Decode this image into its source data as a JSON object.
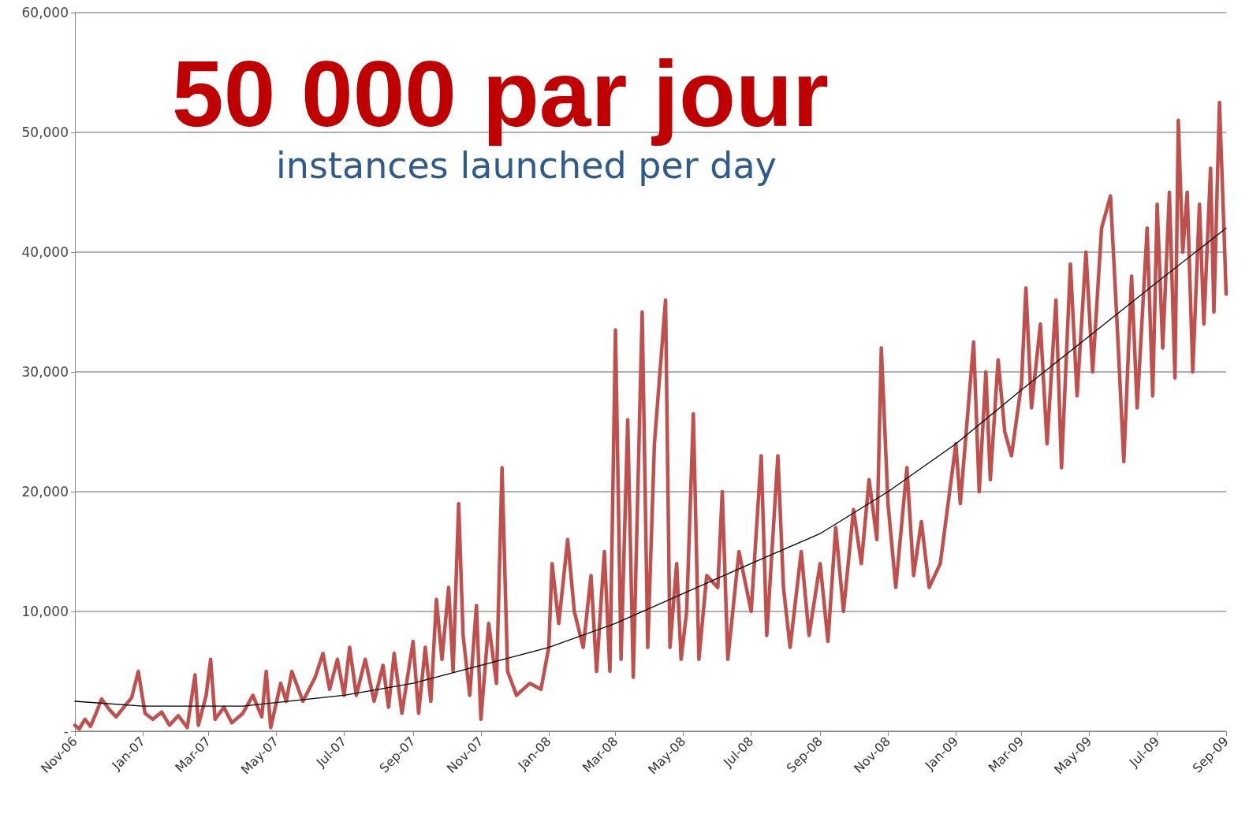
{
  "chart_data": {
    "type": "line",
    "title": "50 000 par jour",
    "subtitle": "instances launched per day",
    "xlim": [
      "2006-11-01",
      "2009-09-01"
    ],
    "xticks": [
      {
        "value": "2006-11-01",
        "label": "Nov-06"
      },
      {
        "value": "2007-01-01",
        "label": "Jan-07"
      },
      {
        "value": "2007-03-01",
        "label": "Mar-07"
      },
      {
        "value": "2007-05-01",
        "label": "May-07"
      },
      {
        "value": "2007-07-01",
        "label": "Jul-07"
      },
      {
        "value": "2007-09-01",
        "label": "Sep-07"
      },
      {
        "value": "2007-11-01",
        "label": "Nov-07"
      },
      {
        "value": "2008-01-01",
        "label": "Jan-08"
      },
      {
        "value": "2008-03-01",
        "label": "Mar-08"
      },
      {
        "value": "2008-05-01",
        "label": "May-08"
      },
      {
        "value": "2008-07-01",
        "label": "Jul-08"
      },
      {
        "value": "2008-09-01",
        "label": "Sep-08"
      },
      {
        "value": "2008-11-01",
        "label": "Nov-08"
      },
      {
        "value": "2009-01-01",
        "label": "Jan-09"
      },
      {
        "value": "2009-03-01",
        "label": "Mar-09"
      },
      {
        "value": "2009-05-01",
        "label": "May-09"
      },
      {
        "value": "2009-07-01",
        "label": "Jul-09"
      },
      {
        "value": "2009-09-01",
        "label": "Sep-09"
      }
    ],
    "ylim": [
      0,
      60000
    ],
    "yticks": [
      {
        "value": 0,
        "label": "-"
      },
      {
        "value": 10000,
        "label": "10,000"
      },
      {
        "value": 20000,
        "label": "20,000"
      },
      {
        "value": 30000,
        "label": "30,000"
      },
      {
        "value": 40000,
        "label": "40,000"
      },
      {
        "value": 50000,
        "label": "50,000"
      },
      {
        "value": 60000,
        "label": "60,000"
      }
    ],
    "grid": "y",
    "marker": "none",
    "line_style": "solid",
    "series": [
      {
        "color": "#c0504d",
        "x": [
          "2006-11-01",
          "2006-11-05",
          "2006-11-10",
          "2006-11-15",
          "2006-11-20",
          "2006-11-25",
          "2006-12-02",
          "2006-12-08",
          "2006-12-15",
          "2006-12-22",
          "2006-12-28",
          "2007-01-03",
          "2007-01-10",
          "2007-01-18",
          "2007-01-25",
          "2007-02-02",
          "2007-02-10",
          "2007-02-17",
          "2007-02-20",
          "2007-02-27",
          "2007-03-03",
          "2007-03-07",
          "2007-03-15",
          "2007-03-22",
          "2007-04-01",
          "2007-04-10",
          "2007-04-18",
          "2007-04-22",
          "2007-04-26",
          "2007-05-05",
          "2007-05-10",
          "2007-05-15",
          "2007-05-25",
          "2007-06-05",
          "2007-06-12",
          "2007-06-18",
          "2007-06-25",
          "2007-07-01",
          "2007-07-06",
          "2007-07-12",
          "2007-07-20",
          "2007-07-28",
          "2007-08-05",
          "2007-08-10",
          "2007-08-15",
          "2007-08-22",
          "2007-09-01",
          "2007-09-06",
          "2007-09-12",
          "2007-09-17",
          "2007-09-22",
          "2007-09-27",
          "2007-10-03",
          "2007-10-07",
          "2007-10-12",
          "2007-10-16",
          "2007-10-22",
          "2007-10-28",
          "2007-11-01",
          "2007-11-08",
          "2007-11-15",
          "2007-11-20",
          "2007-11-25",
          "2007-12-03",
          "2007-12-15",
          "2007-12-25",
          "2008-01-01",
          "2008-01-04",
          "2008-01-10",
          "2008-01-18",
          "2008-01-24",
          "2008-02-01",
          "2008-02-08",
          "2008-02-13",
          "2008-02-20",
          "2008-02-25",
          "2008-03-01",
          "2008-03-06",
          "2008-03-12",
          "2008-03-17",
          "2008-03-25",
          "2008-03-30",
          "2008-04-05",
          "2008-04-15",
          "2008-04-19",
          "2008-04-25",
          "2008-04-29",
          "2008-05-04",
          "2008-05-10",
          "2008-05-15",
          "2008-05-22",
          "2008-06-01",
          "2008-06-05",
          "2008-06-10",
          "2008-06-20",
          "2008-07-01",
          "2008-07-10",
          "2008-07-15",
          "2008-07-25",
          "2008-07-30",
          "2008-08-05",
          "2008-08-15",
          "2008-08-22",
          "2008-09-01",
          "2008-09-08",
          "2008-09-15",
          "2008-09-22",
          "2008-10-01",
          "2008-10-08",
          "2008-10-15",
          "2008-10-22",
          "2008-10-26",
          "2008-11-01",
          "2008-11-08",
          "2008-11-18",
          "2008-11-24",
          "2008-12-01",
          "2008-12-08",
          "2008-12-18",
          "2009-01-01",
          "2009-01-05",
          "2009-01-17",
          "2009-01-22",
          "2009-01-28",
          "2009-02-01",
          "2009-02-08",
          "2009-02-14",
          "2009-02-20",
          "2009-03-01",
          "2009-03-05",
          "2009-03-10",
          "2009-03-18",
          "2009-03-24",
          "2009-04-01",
          "2009-04-06",
          "2009-04-14",
          "2009-04-20",
          "2009-04-28",
          "2009-05-04",
          "2009-05-12",
          "2009-05-20",
          "2009-05-26",
          "2009-06-01",
          "2009-06-08",
          "2009-06-13",
          "2009-06-22",
          "2009-06-27",
          "2009-07-01",
          "2009-07-06",
          "2009-07-12",
          "2009-07-17",
          "2009-07-20",
          "2009-07-24",
          "2009-07-28",
          "2009-08-02",
          "2009-08-08",
          "2009-08-12",
          "2009-08-18",
          "2009-08-21",
          "2009-08-26",
          "2009-08-30",
          "2009-09-01"
        ],
        "values": [
          500,
          200,
          1000,
          400,
          1500,
          2700,
          1800,
          1200,
          2000,
          2800,
          5000,
          1500,
          1000,
          1600,
          500,
          1300,
          300,
          4700,
          500,
          3000,
          6000,
          1000,
          2000,
          700,
          1500,
          3000,
          1200,
          5000,
          300,
          4000,
          2500,
          5000,
          2500,
          4500,
          6500,
          3500,
          6000,
          3000,
          7000,
          3000,
          6000,
          2500,
          5500,
          2000,
          6500,
          1500,
          7500,
          1500,
          7000,
          2500,
          11000,
          6000,
          12000,
          5000,
          19000,
          8000,
          3000,
          10500,
          1000,
          9000,
          4000,
          22000,
          5000,
          3000,
          4000,
          3500,
          7000,
          14000,
          9000,
          16000,
          10000,
          7000,
          13000,
          5000,
          15000,
          5000,
          33500,
          6000,
          26000,
          4500,
          35000,
          7000,
          24000,
          36000,
          7000,
          14000,
          6000,
          10000,
          26500,
          6000,
          13000,
          12000,
          20000,
          6000,
          15000,
          10000,
          23000,
          8000,
          23000,
          12000,
          7000,
          15000,
          8000,
          14000,
          7500,
          17000,
          10000,
          18500,
          14000,
          21000,
          16000,
          32000,
          19000,
          12000,
          22000,
          13000,
          17500,
          12000,
          14000,
          24000,
          19000,
          32500,
          20000,
          30000,
          21000,
          31000,
          25000,
          23000,
          29000,
          37000,
          27000,
          34000,
          24000,
          36000,
          22000,
          39000,
          28000,
          40000,
          30000,
          42000,
          44700,
          34000,
          22500,
          38000,
          27000,
          42000,
          28000,
          44000,
          32000,
          45000,
          29500,
          51000,
          40000,
          45000,
          30000,
          44000,
          34000,
          47000,
          35000,
          52500,
          42000,
          36500
        ]
      },
      {
        "color": "#000000",
        "x": [
          "2006-11-01",
          "2007-01-01",
          "2007-04-01",
          "2007-07-01",
          "2007-09-01",
          "2007-11-01",
          "2008-01-01",
          "2008-03-01",
          "2008-05-01",
          "2008-07-01",
          "2008-09-01",
          "2008-11-01",
          "2009-01-01",
          "2009-03-01",
          "2009-05-01",
          "2009-07-01",
          "2009-09-01"
        ],
        "values": [
          2500,
          2100,
          2100,
          3000,
          4000,
          5500,
          7000,
          9000,
          11500,
          14000,
          16500,
          20000,
          24000,
          28500,
          33000,
          37500,
          42000
        ]
      }
    ]
  }
}
